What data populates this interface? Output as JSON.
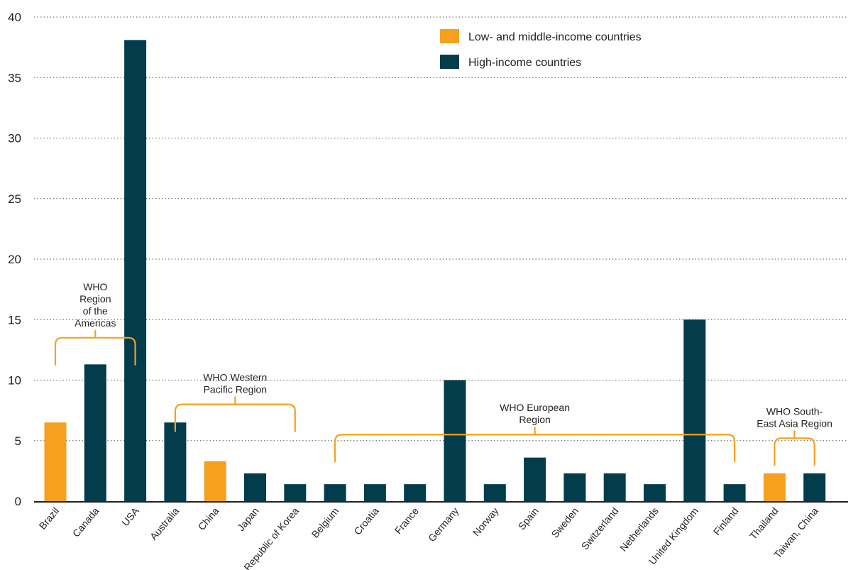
{
  "colors": {
    "low_middle": "#f5a11d",
    "high": "#033d4c",
    "bracket": "#f5a11d"
  },
  "chart_data": {
    "type": "bar",
    "title": "",
    "xlabel": "",
    "ylabel": "",
    "ylim": [
      0,
      40
    ],
    "yticks": [
      0,
      5,
      10,
      15,
      20,
      25,
      30,
      35,
      40
    ],
    "grid": true,
    "legend_position": "top-right",
    "legend": [
      {
        "key": "low_middle",
        "label": "Low- and middle-income countries"
      },
      {
        "key": "high",
        "label": "High-income countries"
      }
    ],
    "categories": [
      "Brazil",
      "Canada",
      "USA",
      "Australia",
      "China",
      "Japan",
      "Republic of Korea",
      "Belgium",
      "Croatia",
      "France",
      "Germany",
      "Norway",
      "Spain",
      "Sweden",
      "Switzerland",
      "Netherlands",
      "United Kingdom",
      "Finland",
      "Thailand",
      "Taiwan, China"
    ],
    "values": [
      6.5,
      11.3,
      38.1,
      6.5,
      3.3,
      2.3,
      1.4,
      1.4,
      1.4,
      1.4,
      10.0,
      1.4,
      3.6,
      2.3,
      2.3,
      1.4,
      15.0,
      1.4,
      2.3,
      2.3
    ],
    "income_group": [
      "low_middle",
      "high",
      "high",
      "high",
      "low_middle",
      "high",
      "high",
      "high",
      "high",
      "high",
      "high",
      "high",
      "high",
      "high",
      "high",
      "high",
      "high",
      "high",
      "low_middle",
      "high"
    ],
    "regions": [
      {
        "label_lines": [
          "WHO",
          "Region",
          "of the",
          "Americas"
        ],
        "from": 0,
        "to": 2,
        "level": 13.5
      },
      {
        "label_lines": [
          "WHO Western",
          "Pacific Region"
        ],
        "from": 3,
        "to": 6,
        "level": 8.0
      },
      {
        "label_lines": [
          "WHO European",
          "Region"
        ],
        "from": 7,
        "to": 17,
        "level": 5.5
      },
      {
        "label_lines": [
          "WHO South-",
          "East Asia Region"
        ],
        "from": 18,
        "to": 19,
        "level": 5.2
      }
    ]
  }
}
